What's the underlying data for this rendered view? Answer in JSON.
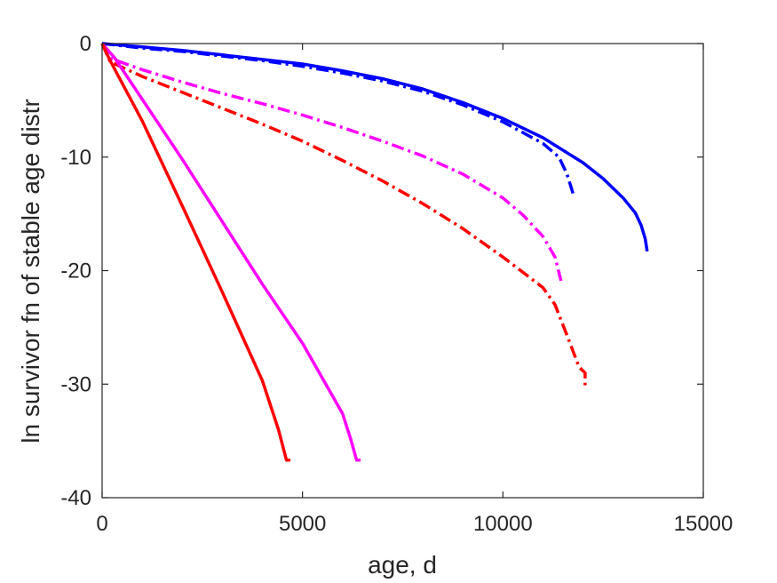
{
  "chart_data": {
    "type": "line",
    "title": "",
    "xlabel": "age, d",
    "ylabel": "ln survivor fn of stable age distr",
    "xlim": [
      0,
      15000
    ],
    "ylim": [
      -40,
      0
    ],
    "xticks": [
      0,
      5000,
      10000,
      15000
    ],
    "yticks": [
      -40,
      -30,
      -20,
      -10,
      0
    ],
    "xtick_labels": [
      "0",
      "5000",
      "10000",
      "15000"
    ],
    "ytick_labels": [
      "-40",
      "-30",
      "-20",
      "-10",
      "0"
    ],
    "grid": false,
    "series": [
      {
        "color": "#0000ff",
        "style": "solid",
        "x": [
          0,
          1000,
          2000,
          3000,
          4000,
          5000,
          6000,
          7000,
          8000,
          9000,
          10000,
          11000,
          12000,
          12500,
          13000,
          13300,
          13450,
          13550,
          13600
        ],
        "y": [
          0,
          -0.3,
          -0.6,
          -1.0,
          -1.4,
          -1.8,
          -2.4,
          -3.1,
          -4.0,
          -5.2,
          -6.6,
          -8.3,
          -10.5,
          -11.9,
          -13.6,
          -14.9,
          -16.0,
          -17.2,
          -18.3
        ]
      },
      {
        "color": "#0000ff",
        "style": "dashdot",
        "x": [
          0,
          1000,
          2000,
          3000,
          4000,
          5000,
          6000,
          7000,
          8000,
          9000,
          10000,
          11000,
          11400,
          11600,
          11750
        ],
        "y": [
          0,
          -0.4,
          -0.7,
          -1.1,
          -1.5,
          -2.0,
          -2.6,
          -3.3,
          -4.2,
          -5.4,
          -6.9,
          -8.8,
          -10.0,
          -11.5,
          -13.2
        ]
      },
      {
        "color": "#ff00ff",
        "style": "dashdot",
        "x": [
          0,
          200,
          1000,
          2000,
          3000,
          4000,
          5000,
          6000,
          7000,
          8000,
          9000,
          10000,
          10500,
          11000,
          11300,
          11450
        ],
        "y": [
          0,
          -1.3,
          -2.3,
          -3.4,
          -4.4,
          -5.3,
          -6.3,
          -7.4,
          -8.6,
          -9.9,
          -11.5,
          -13.6,
          -15.1,
          -17.0,
          -18.8,
          -20.9
        ]
      },
      {
        "color": "#ff0000",
        "style": "dashdot",
        "x": [
          0,
          200,
          1000,
          2000,
          3000,
          4000,
          5000,
          6000,
          7000,
          8000,
          9000,
          10000,
          11000,
          11300,
          11600,
          11900,
          12050,
          12050
        ],
        "y": [
          0,
          -1.6,
          -2.9,
          -4.3,
          -5.7,
          -7.1,
          -8.6,
          -10.3,
          -12.1,
          -14.1,
          -16.3,
          -18.8,
          -21.5,
          -23.0,
          -25.7,
          -28.5,
          -29.0,
          -30.1
        ]
      },
      {
        "color": "#ff00ff",
        "style": "solid",
        "x": [
          0,
          300,
          1000,
          2000,
          3000,
          4000,
          5000,
          6000,
          6200,
          6350,
          6450
        ],
        "y": [
          0,
          -1.2,
          -4.9,
          -10.2,
          -15.7,
          -21.2,
          -26.4,
          -32.6,
          -34.8,
          -36.7,
          -36.7
        ]
      },
      {
        "color": "#ff0000",
        "style": "solid",
        "x": [
          0,
          200,
          1000,
          2000,
          3000,
          4000,
          4400,
          4600,
          4700
        ],
        "y": [
          0,
          -1.5,
          -6.8,
          -14.3,
          -21.9,
          -29.7,
          -34.0,
          -36.7,
          -36.7
        ]
      }
    ]
  }
}
